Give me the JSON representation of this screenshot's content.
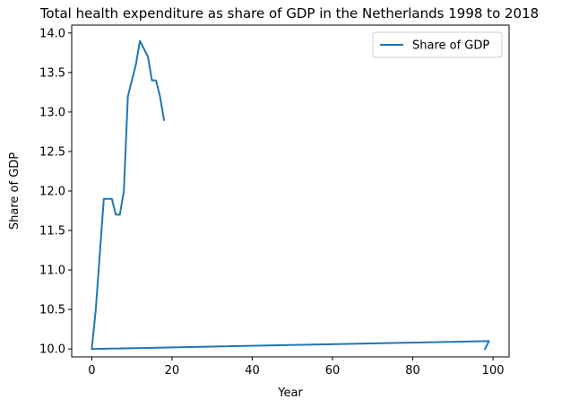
{
  "chart_data": {
    "type": "line",
    "title": "Total health expenditure as share of GDP in the Netherlands 1998 to 2018",
    "xlabel": "Year",
    "ylabel": "Share of GDP",
    "xlim": [
      -5,
      104
    ],
    "ylim": [
      9.9,
      14.1
    ],
    "xticks": [
      0,
      20,
      40,
      60,
      80,
      100
    ],
    "yticks": [
      10.0,
      10.5,
      11.0,
      11.5,
      12.0,
      12.5,
      13.0,
      13.5,
      14.0
    ],
    "ytick_labels": [
      "10.0",
      "10.5",
      "11.0",
      "11.5",
      "12.0",
      "12.5",
      "13.0",
      "13.5",
      "14.0"
    ],
    "grid": false,
    "legend_position": "top-right",
    "series": [
      {
        "name": "Share of GDP",
        "color": "#1f77b4",
        "x": [
          18,
          17,
          16,
          15,
          14,
          13,
          12,
          11,
          10,
          9,
          8,
          7,
          6,
          5,
          4,
          3,
          2,
          1,
          0,
          99,
          98
        ],
        "y": [
          12.9,
          13.2,
          13.4,
          13.4,
          13.7,
          13.8,
          13.9,
          13.6,
          13.4,
          13.2,
          12.0,
          11.7,
          11.7,
          11.9,
          11.9,
          11.9,
          11.2,
          10.5,
          10.0,
          10.1,
          10.0
        ]
      }
    ]
  }
}
